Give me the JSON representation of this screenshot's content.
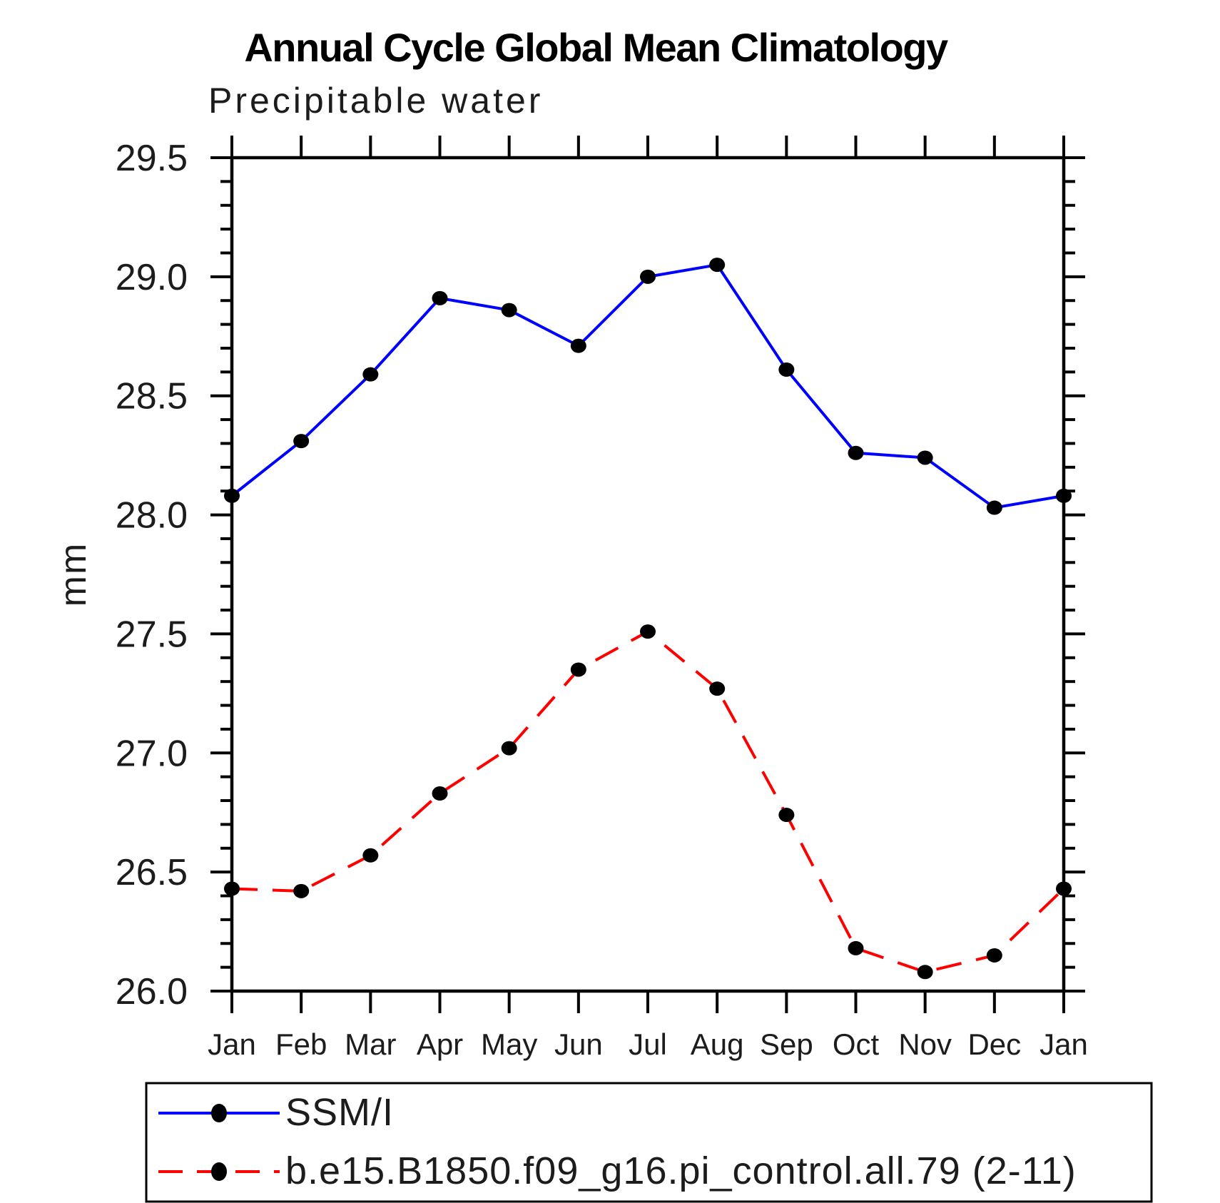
{
  "page": {
    "background": "#ffffff"
  },
  "chart_data": {
    "type": "line",
    "title": "Annual Cycle Global Mean Climatology",
    "subtitle": "Precipitable water",
    "ylabel": "mm",
    "xlabel": "",
    "categories": [
      "Jan",
      "Feb",
      "Mar",
      "Apr",
      "May",
      "Jun",
      "Jul",
      "Aug",
      "Sep",
      "Oct",
      "Nov",
      "Dec",
      "Jan"
    ],
    "ylim": [
      26.0,
      29.5
    ],
    "ytick_major_step": 0.5,
    "ytick_minor_step": 0.1,
    "grid": false,
    "legend_position": "bottom-left-box",
    "marker": {
      "shape": "circle",
      "color": "#000000"
    },
    "series": [
      {
        "name": "SSM/I",
        "color": "#0000ff",
        "style": "solid",
        "values": [
          28.08,
          28.31,
          28.59,
          28.91,
          28.86,
          28.71,
          29.0,
          29.05,
          28.61,
          28.26,
          28.24,
          28.03,
          28.08
        ]
      },
      {
        "name": "b.e15.B1850.f09_g16.pi_control.all.79 (2-11)",
        "color": "#ff0000",
        "style": "dashed",
        "values": [
          26.43,
          26.42,
          26.57,
          26.83,
          27.02,
          27.35,
          27.51,
          27.27,
          26.74,
          26.18,
          26.08,
          26.15,
          26.43
        ]
      }
    ]
  }
}
